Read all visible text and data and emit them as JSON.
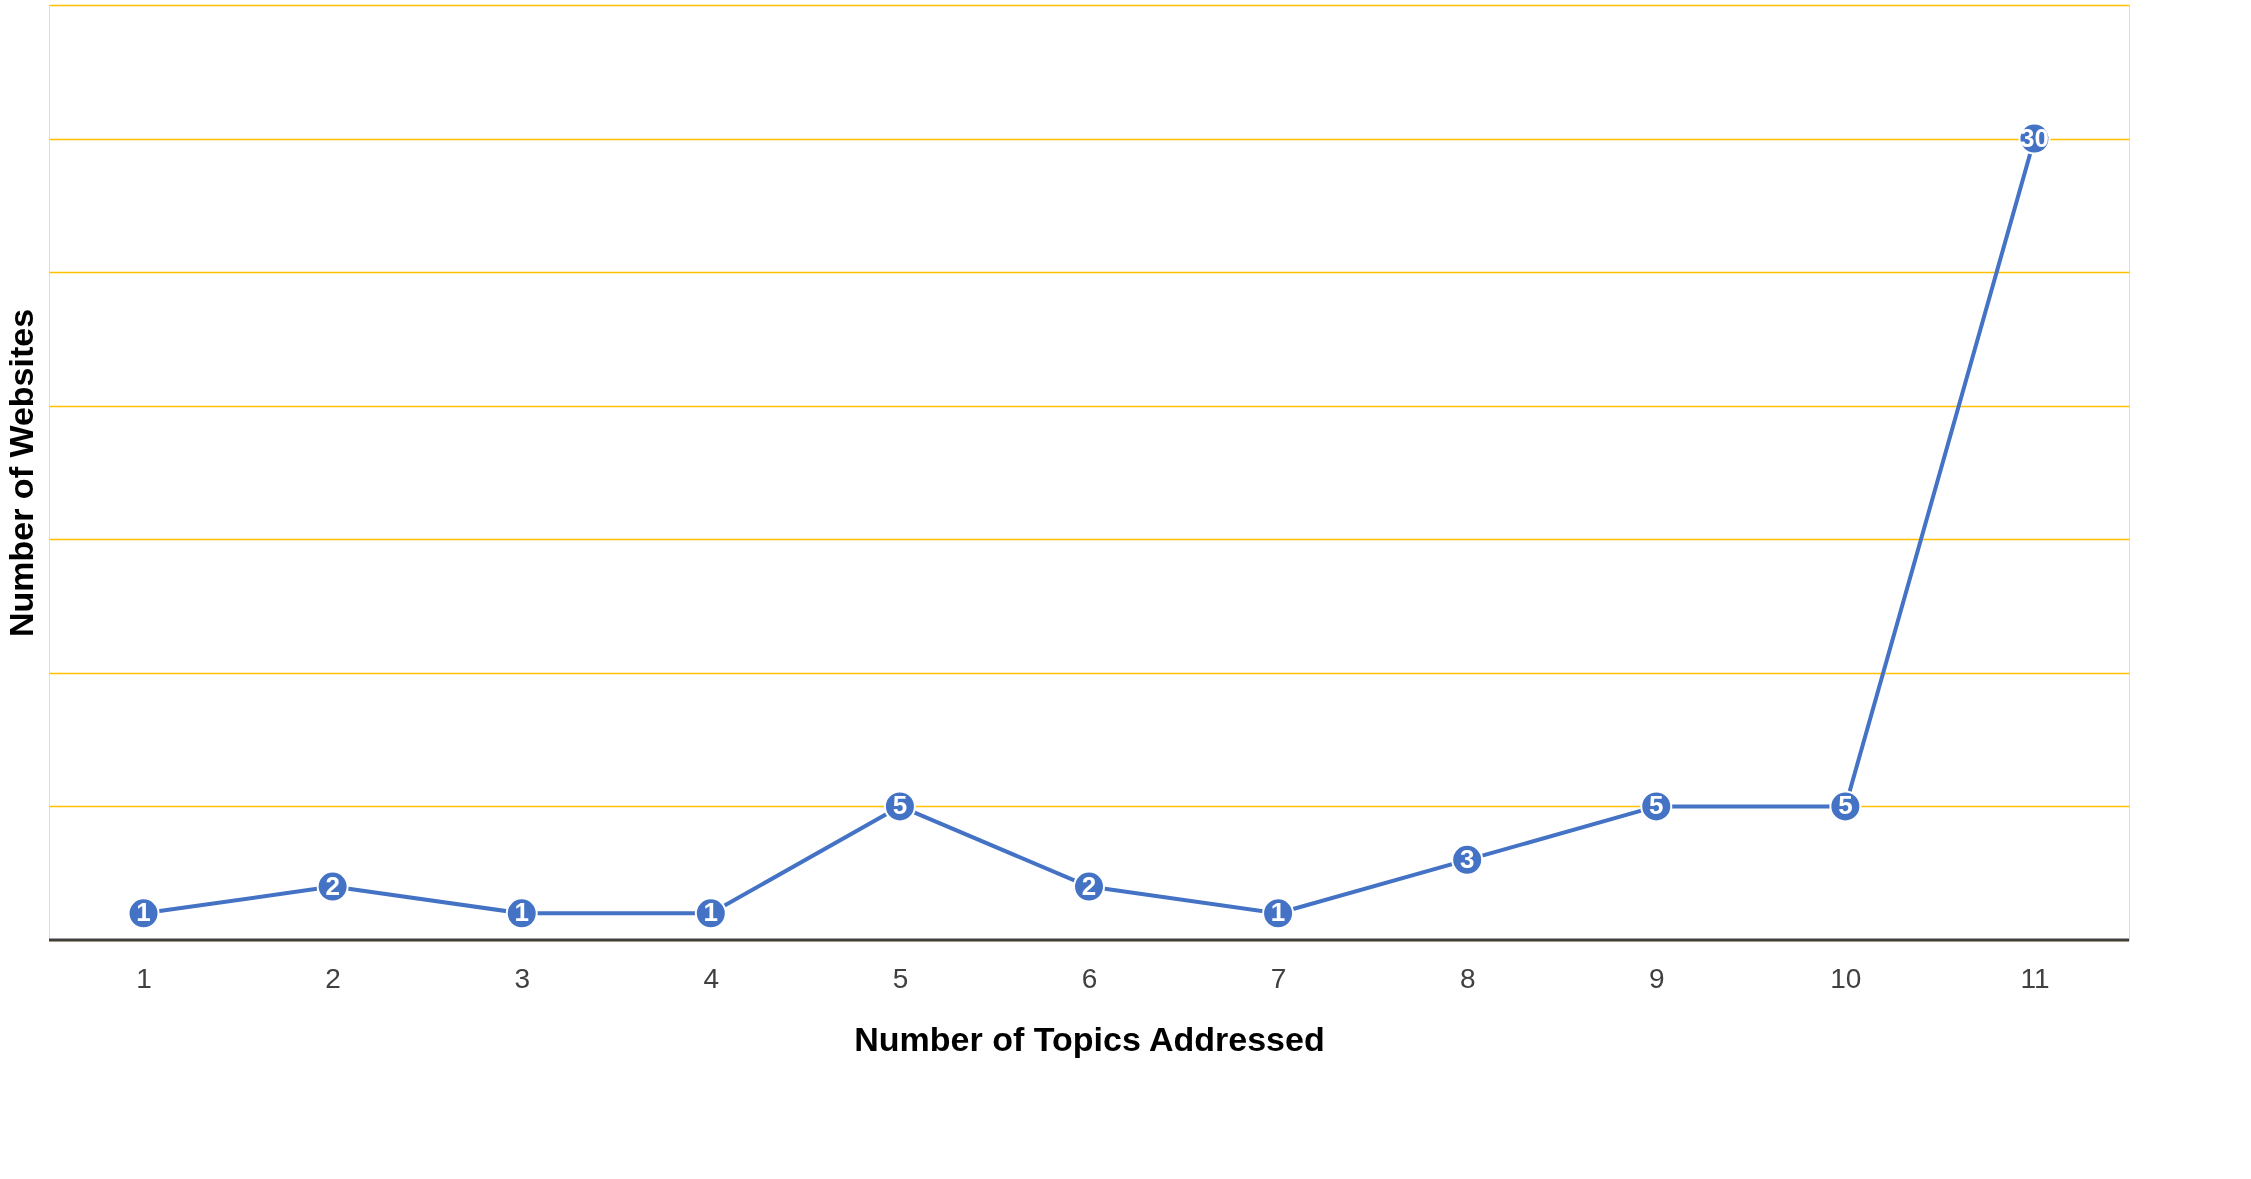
{
  "chart_data": {
    "type": "line",
    "xlabel": "Number of Topics Addressed",
    "ylabel": "Number of Websites",
    "categories": [
      "1",
      "2",
      "3",
      "4",
      "5",
      "6",
      "7",
      "8",
      "9",
      "10",
      "11"
    ],
    "series": [
      {
        "color": "#4472c4",
        "values": [
          1,
          2,
          1,
          1,
          5,
          2,
          1,
          3,
          5,
          5,
          30
        ]
      }
    ],
    "ylim": [
      0,
      35
    ],
    "yticks": [
      {
        "value": 0,
        "label": null
      },
      {
        "value": 5,
        "label": null
      },
      {
        "value": 10,
        "label": null
      },
      {
        "value": 15,
        "label": null
      },
      {
        "value": 20,
        "label": null
      },
      {
        "value": 25,
        "label": null
      },
      {
        "value": 30,
        "label": null
      },
      {
        "value": 35,
        "label": null
      }
    ],
    "grid": "y",
    "marker": "circle",
    "data_labels": true,
    "tick_labels": "x"
  }
}
